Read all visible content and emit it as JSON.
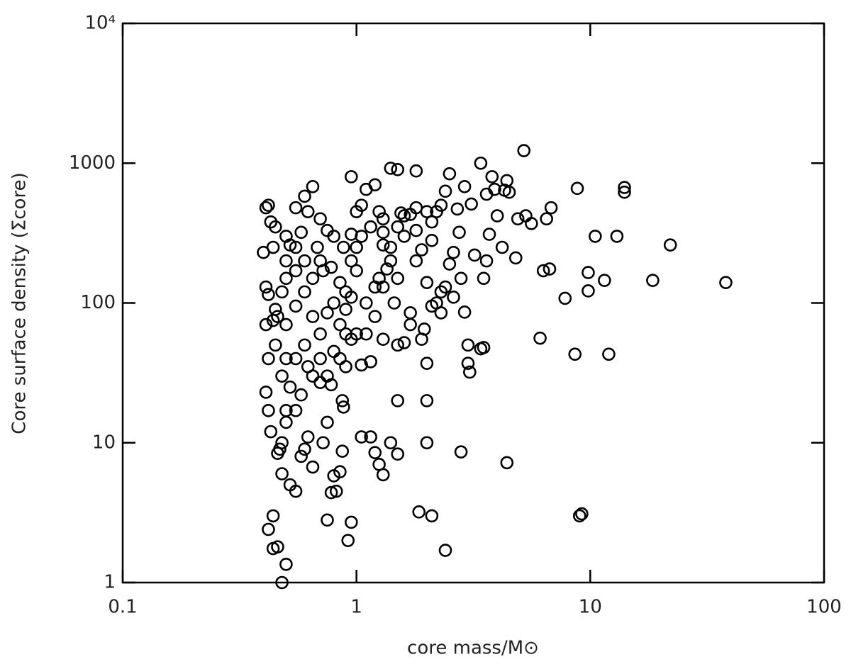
{
  "chart_data": {
    "type": "scatter",
    "xlabel": "core mass/M⊙",
    "ylabel": "Core surface density (Σcore)",
    "xscale": "log",
    "yscale": "log",
    "xlim": [
      0.1,
      100
    ],
    "ylim": [
      1,
      10000
    ],
    "xticks": [
      0.1,
      1,
      10,
      100
    ],
    "yticks": [
      1,
      10,
      100,
      1000,
      {
        "value": 10000,
        "label": "10⁴"
      }
    ],
    "color": "#000000",
    "marker": "open-circle",
    "x": [
      5.2,
      3.4,
      2.5,
      1.4,
      1.5,
      1.8,
      0.95,
      3.8,
      4.4,
      8.8,
      14,
      14,
      38,
      22,
      18.5,
      12,
      8.6,
      9,
      9.2,
      4.4,
      2.4,
      2.8,
      6.1,
      7.8,
      9.8,
      9.8,
      10.5,
      11.5,
      13,
      6.3,
      6.7,
      6.5,
      6.8,
      5.6,
      5.3,
      4.8,
      4.9,
      4.3,
      4,
      3.7,
      3.6,
      3.5,
      3.4,
      3.5,
      3.0,
      3.0,
      3.05,
      2.9,
      2.8,
      2.75,
      2.9,
      3.1,
      2.7,
      2.6,
      2.5,
      2.3,
      2.2,
      2.0,
      2.0,
      2.0,
      2.1,
      1.85,
      1.5,
      1.5,
      1.4,
      1.3,
      1.25,
      1.2,
      1.15,
      1.05,
      0.95,
      0.92,
      0.75,
      0.78,
      0.82,
      0.85,
      0.8,
      0.87,
      0.88,
      0.87,
      0.75,
      0.72,
      0.65,
      0.6,
      0.62,
      0.58,
      0.55,
      0.52,
      0.48,
      0.5,
      0.48,
      0.46,
      0.44,
      0.42,
      0.44,
      0.47,
      0.46,
      0.48,
      0.5,
      0.43,
      0.42,
      0.5,
      0.55,
      0.41,
      0.52,
      0.58,
      0.7,
      0.78,
      0.9,
      1.05,
      1.15,
      0.95,
      1.3,
      1.5,
      1.6,
      1.7,
      1.9,
      1.95,
      1.8,
      1.9,
      2.0,
      2.1,
      2.2,
      2.3,
      2.0,
      1.7,
      1.6,
      1.5,
      1.4,
      1.3,
      1.25,
      1.1,
      1.2,
      1.0,
      1.05,
      1.0,
      1.1,
      1.2,
      1.3,
      0.9,
      0.85,
      0.8,
      0.75,
      0.7,
      0.65,
      0.6,
      0.62,
      0.55,
      0.5,
      0.55,
      0.45,
      0.42,
      0.41,
      0.43,
      0.44,
      0.4,
      0.41,
      0.42,
      0.44,
      0.41,
      0.45,
      0.46,
      0.5,
      0.55,
      0.6,
      0.65,
      0.7,
      0.75,
      0.8,
      0.85,
      0.9,
      0.95,
      0.65,
      0.7,
      0.6,
      0.55,
      0.5,
      0.48,
      0.5,
      0.52,
      0.58,
      0.68,
      0.72,
      0.78,
      0.88,
      0.95,
      1.0,
      1.15,
      1.3,
      1.4,
      1.5,
      1.6,
      1.8,
      1.2,
      1.1,
      1.0,
      0.9,
      0.6,
      0.55,
      0.5,
      0.45,
      0.42,
      0.48,
      0.62,
      0.7,
      0.8,
      0.85,
      0.65,
      0.75,
      2.4,
      2.6,
      2.3,
      2.1,
      1.25,
      1.35,
      1.45,
      1.7,
      0.95,
      1.05,
      1.3,
      3.2,
      3.6,
      3.9,
      4.5,
      2.4,
      2.1,
      1.8,
      1.55,
      4.2
    ],
    "y": [
      1230,
      1000,
      840,
      920,
      900,
      880,
      800,
      800,
      750,
      660,
      670,
      620,
      140,
      260,
      145,
      43,
      43,
      3,
      3.1,
      7.2,
      1.7,
      8.6,
      56,
      108,
      165,
      122,
      300,
      145,
      300,
      170,
      175,
      400,
      480,
      370,
      420,
      210,
      400,
      640,
      420,
      310,
      200,
      150,
      47,
      48,
      50,
      37,
      32,
      86,
      150,
      320,
      680,
      510,
      470,
      230,
      190,
      120,
      100,
      37,
      20,
      10,
      3,
      3.2,
      20,
      8.3,
      10,
      5.9,
      7,
      8.5,
      11,
      11,
      2.7,
      2,
      2.8,
      4.4,
      4.5,
      6.2,
      5.8,
      8.7,
      18,
      20,
      14,
      10,
      6.7,
      9,
      11,
      8,
      4.5,
      5,
      6,
      1.35,
      1,
      1.8,
      1.75,
      2.4,
      3,
      9,
      8.4,
      10,
      14,
      12,
      17,
      17,
      17,
      23,
      25,
      22,
      27,
      26,
      35,
      36,
      38,
      55,
      55,
      50,
      52,
      70,
      55,
      65,
      200,
      240,
      140,
      280,
      450,
      500,
      450,
      430,
      300,
      150,
      200,
      400,
      450,
      650,
      700,
      450,
      300,
      170,
      100,
      80,
      130,
      90,
      140,
      300,
      330,
      400,
      680,
      580,
      450,
      480,
      300,
      250,
      350,
      500,
      480,
      380,
      250,
      230,
      130,
      115,
      75,
      70,
      90,
      80,
      70,
      95,
      120,
      80,
      60,
      85,
      100,
      70,
      120,
      110,
      150,
      200,
      200,
      170,
      150,
      120,
      200,
      260,
      320,
      250,
      170,
      180,
      250,
      200,
      250,
      350,
      320,
      250,
      350,
      420,
      330,
      130,
      60,
      60,
      60,
      50,
      40,
      40,
      50,
      40,
      30,
      35,
      40,
      45,
      40,
      30,
      30,
      130,
      110,
      85,
      95,
      150,
      175,
      100,
      85,
      310,
      500,
      260,
      220,
      600,
      650,
      620,
      630,
      380,
      480,
      440,
      250
    ]
  }
}
